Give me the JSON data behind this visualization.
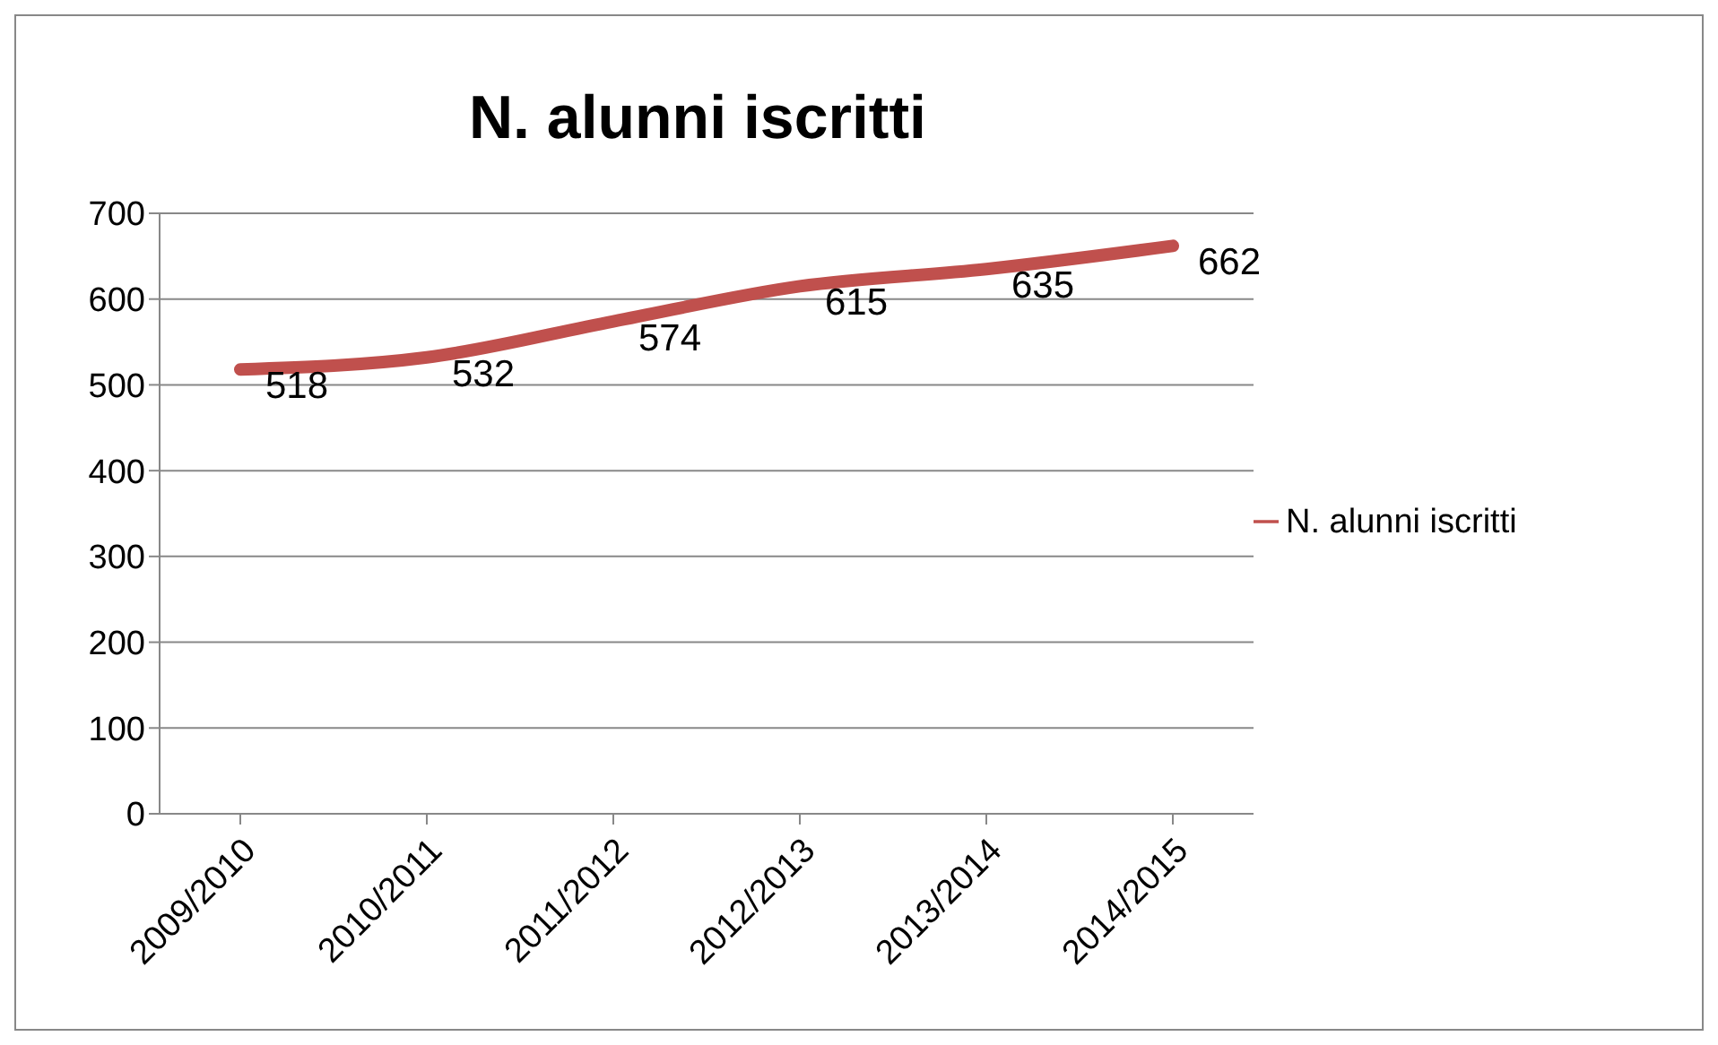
{
  "chart_data": {
    "type": "line",
    "title": "N. alunni iscritti",
    "categories": [
      "2009/2010",
      "2010/2011",
      "2011/2012",
      "2012/2013",
      "2013/2014",
      "2014/2015"
    ],
    "series": [
      {
        "name": "N. alunni iscritti",
        "color": "#c0504d",
        "values": [
          518,
          532,
          574,
          615,
          635,
          662
        ]
      }
    ],
    "ylim": [
      0,
      700
    ],
    "yticks": [
      0,
      100,
      200,
      300,
      400,
      500,
      600,
      700
    ],
    "grid": "y",
    "legend": "right",
    "data_labels": true,
    "marker": "none",
    "line_style": "solid"
  }
}
